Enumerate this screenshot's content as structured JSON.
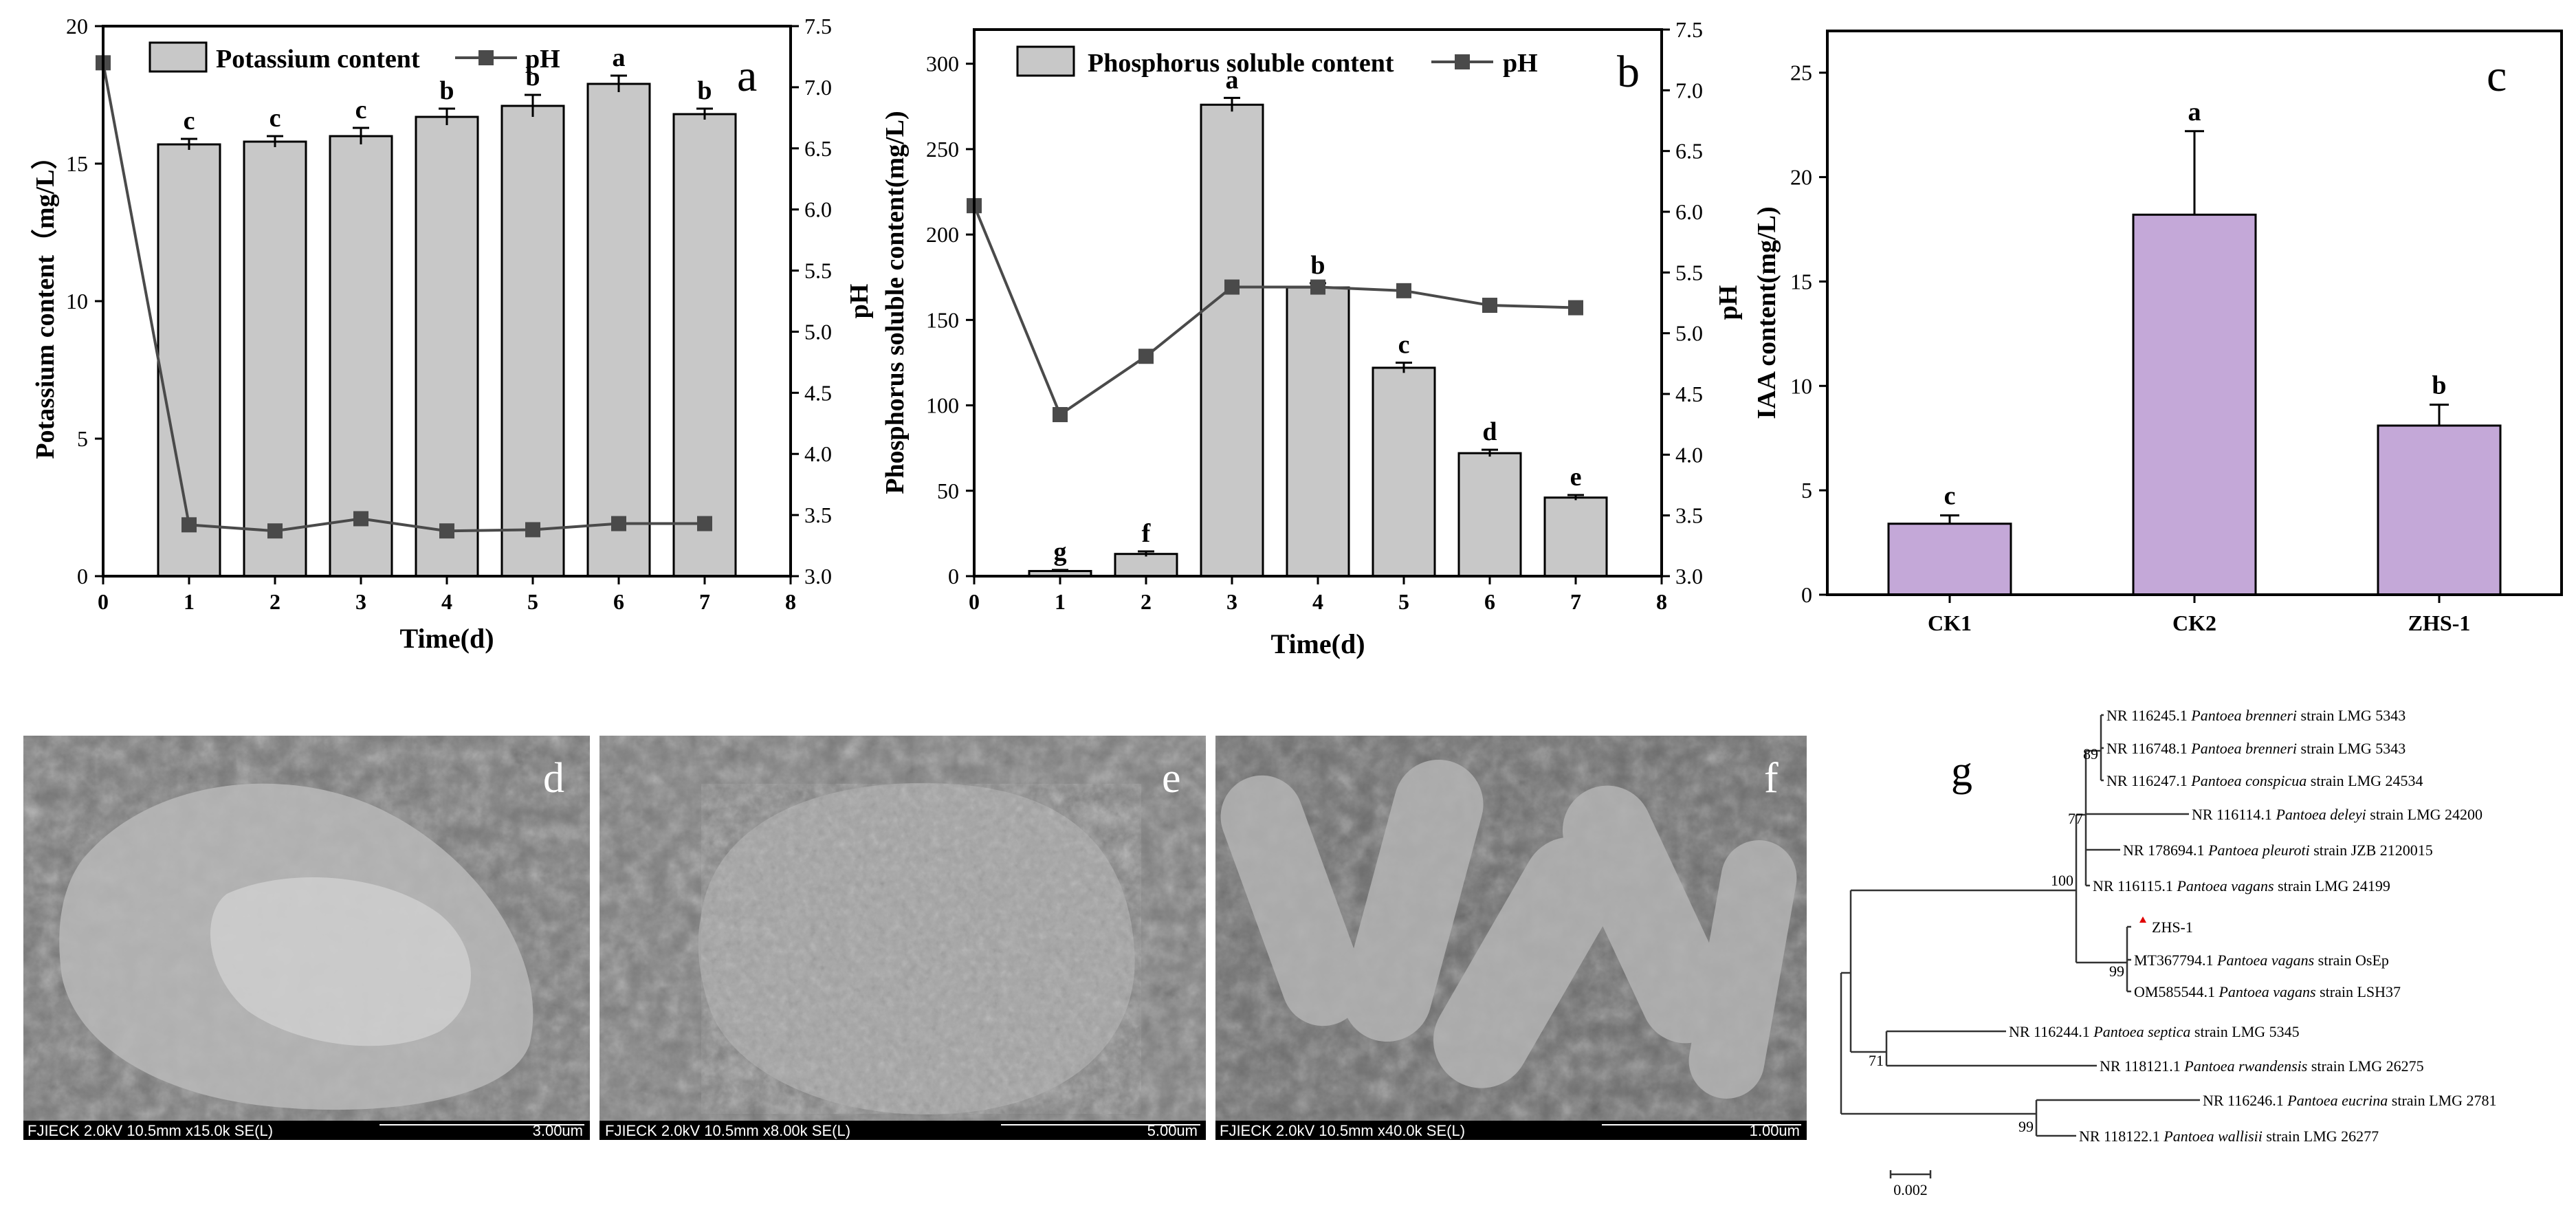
{
  "colors": {
    "bar_gray": "#c8c8c8",
    "bar_purple": "#c4a8d8",
    "line_marker": "#4a4a4a",
    "axis": "#000000",
    "sem_bg": "#7a7a7a",
    "sem_info_bar": "#000000",
    "query_marker": "#e00000"
  },
  "chart_data": [
    {
      "panel": "a",
      "type": "bar",
      "ylabel": "Potassium content（mg/L）",
      "y2label": "pH",
      "xlabel": "Time(d)",
      "xlim": [
        0,
        8
      ],
      "ylim": [
        0,
        20
      ],
      "y2lim": [
        3.0,
        7.5
      ],
      "xticks": [
        "0",
        "1",
        "2",
        "3",
        "4",
        "5",
        "6",
        "7",
        "8"
      ],
      "yticks": [
        "0",
        "5",
        "10",
        "15",
        "20"
      ],
      "y2ticks": [
        "3.0",
        "3.5",
        "4.0",
        "4.5",
        "5.0",
        "5.5",
        "6.0",
        "6.5",
        "7.0",
        "7.5"
      ],
      "legend": {
        "bar": "Potassium content",
        "line": "pH"
      },
      "series": [
        {
          "name": "Potassium content",
          "kind": "bar",
          "x": [
            1,
            2,
            3,
            4,
            5,
            6,
            7
          ],
          "values": [
            15.7,
            15.8,
            16.0,
            16.7,
            17.1,
            17.9,
            16.8
          ],
          "err": [
            0.2,
            0.2,
            0.3,
            0.3,
            0.4,
            0.3,
            0.2
          ],
          "letters": [
            "c",
            "c",
            "c",
            "b",
            "b",
            "a",
            "b"
          ]
        },
        {
          "name": "pH",
          "kind": "line",
          "x": [
            0,
            1,
            2,
            3,
            4,
            5,
            6,
            7
          ],
          "values": [
            7.2,
            3.42,
            3.37,
            3.47,
            3.37,
            3.38,
            3.43,
            3.43
          ]
        }
      ]
    },
    {
      "panel": "b",
      "type": "bar",
      "ylabel": "Phosphorus soluble content(mg/L)",
      "y2label": "pH",
      "xlabel": "Time(d)",
      "xlim": [
        0,
        8
      ],
      "ylim": [
        0,
        320
      ],
      "y2lim": [
        3.0,
        7.5
      ],
      "xticks": [
        "0",
        "1",
        "2",
        "3",
        "4",
        "5",
        "6",
        "7",
        "8"
      ],
      "yticks": [
        "0",
        "50",
        "100",
        "150",
        "200",
        "250",
        "300"
      ],
      "y2ticks": [
        "3.0",
        "3.5",
        "4.0",
        "4.5",
        "5.0",
        "5.5",
        "6.0",
        "6.5",
        "7.0",
        "7.5"
      ],
      "legend": {
        "bar": "Phosphorus soluble content",
        "line": "pH"
      },
      "series": [
        {
          "name": "Phosphorus soluble content",
          "kind": "bar",
          "x": [
            1,
            2,
            3,
            4,
            5,
            6,
            7
          ],
          "values": [
            3,
            13,
            276,
            169,
            122,
            72,
            46
          ],
          "err": [
            0.6,
            1.5,
            4,
            2.5,
            3,
            2,
            1.5
          ],
          "letters": [
            "g",
            "f",
            "a",
            "b",
            "c",
            "d",
            "e"
          ]
        },
        {
          "name": "pH",
          "kind": "line",
          "x": [
            0,
            1,
            2,
            3,
            4,
            5,
            6,
            7
          ],
          "values": [
            6.05,
            4.33,
            4.81,
            5.38,
            5.38,
            5.35,
            5.23,
            5.21
          ]
        }
      ]
    },
    {
      "panel": "c",
      "type": "bar",
      "ylabel": "IAA content(mg/L)",
      "ylim": [
        0,
        27
      ],
      "yticks": [
        "0",
        "5",
        "10",
        "15",
        "20",
        "25"
      ],
      "categories": [
        "CK1",
        "CK2",
        "ZHS-1"
      ],
      "series": [
        {
          "name": "IAA content",
          "values": [
            3.4,
            18.2,
            8.1
          ],
          "err": [
            0.4,
            4.0,
            1.0
          ],
          "letters": [
            "c",
            "a",
            "b"
          ]
        }
      ]
    }
  ],
  "panel_labels": {
    "a": "a",
    "b": "b",
    "c": "c",
    "d": "d",
    "e": "e",
    "f": "f",
    "g": "g"
  },
  "sem": [
    {
      "panel": "d",
      "info": "FJIECK 2.0kV 10.5mm x15.0k SE(L)",
      "scale": "3.00um"
    },
    {
      "panel": "e",
      "info": "FJIECK 2.0kV 10.5mm x8.00k SE(L)",
      "scale": "5.00um"
    },
    {
      "panel": "f",
      "info": "FJIECK 2.0kV 10.5mm x40.0k SE(L)",
      "scale": "1.00um"
    }
  ],
  "tree": {
    "taxa": [
      {
        "acc": "NR 116245.1",
        "species": "Pantoea brenneri",
        "strain": "strain LMG 5343"
      },
      {
        "acc": "NR 116748.1",
        "species": "Pantoea brenneri",
        "strain": "strain LMG 5343"
      },
      {
        "acc": "NR 116247.1",
        "species": "Pantoea conspicua",
        "strain": "strain LMG 24534"
      },
      {
        "acc": "NR 116114.1",
        "species": "Pantoea deleyi",
        "strain": "strain LMG 24200"
      },
      {
        "acc": "NR 178694.1",
        "species": "Pantoea pleuroti",
        "strain": "strain JZB 2120015"
      },
      {
        "acc": "NR 116115.1",
        "species": "Pantoea vagans",
        "strain": "strain LMG 24199"
      },
      {
        "acc": "",
        "species": "",
        "strain": "ZHS-1"
      },
      {
        "acc": "MT367794.1",
        "species": "Pantoea vagans",
        "strain": "strain OsEp"
      },
      {
        "acc": "OM585544.1",
        "species": "Pantoea vagans",
        "strain": "strain LSH37"
      },
      {
        "acc": "NR 116244.1",
        "species": "Pantoea septica",
        "strain": "strain LMG 5345"
      },
      {
        "acc": "NR 118121.1",
        "species": "Pantoea rwandensis",
        "strain": "strain LMG 26275"
      },
      {
        "acc": "NR 116246.1",
        "species": "Pantoea eucrina",
        "strain": "strain LMG 2781"
      },
      {
        "acc": "NR 118122.1",
        "species": "Pantoea wallisii",
        "strain": "strain LMG 26277"
      }
    ],
    "bootstrap": [
      "89",
      "77",
      "100",
      "99",
      "71",
      "99"
    ],
    "scale_bar": "0.002"
  }
}
